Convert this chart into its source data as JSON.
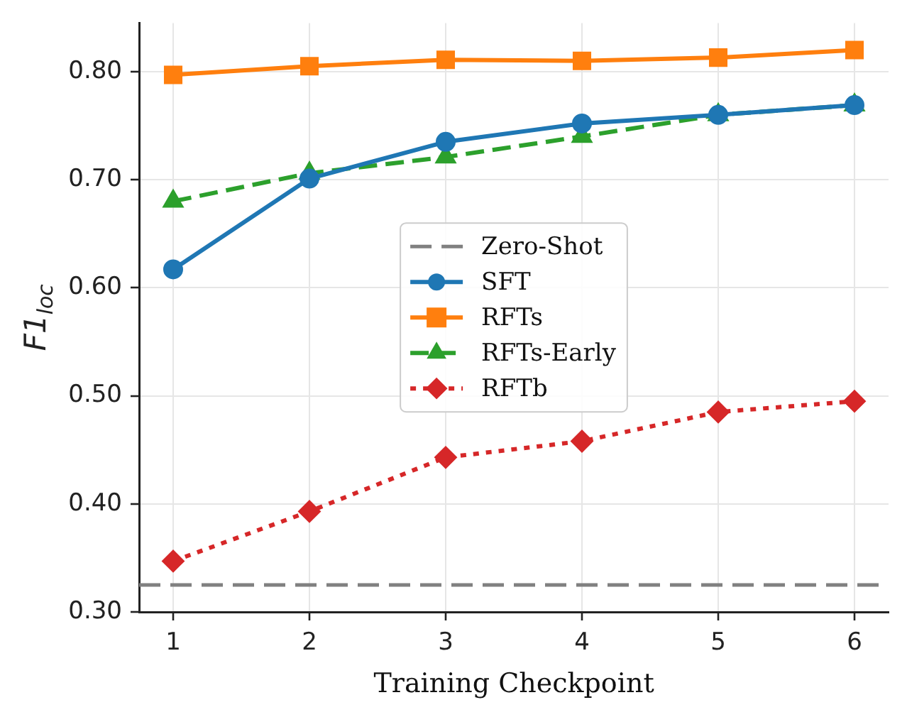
{
  "chart_data": {
    "type": "line",
    "xlabel": "Training Checkpoint",
    "ylabel": "F1$_{loc}$",
    "x": [
      1,
      2,
      3,
      4,
      5,
      6
    ],
    "series": [
      {
        "name": "SFT",
        "color": "#1f77b4",
        "values": [
          0.617,
          0.701,
          0.735,
          0.752,
          0.76,
          0.769
        ],
        "marker": "circle",
        "line_style": "solid"
      },
      {
        "name": "RFTs",
        "color": "#ff7f0e",
        "values": [
          0.797,
          0.805,
          0.811,
          0.81,
          0.813,
          0.82
        ],
        "marker": "square",
        "line_style": "solid"
      },
      {
        "name": "RFTs-Early",
        "color": "#2ca02c",
        "values": [
          0.68,
          0.706,
          0.721,
          0.74,
          0.76,
          0.769
        ],
        "marker": "triangle",
        "line_style": "dashed"
      },
      {
        "name": "RFTb",
        "color": "#d62728",
        "values": [
          0.347,
          0.393,
          0.443,
          0.458,
          0.485,
          0.495
        ],
        "marker": "diamond",
        "line_style": "dotted"
      }
    ],
    "ref_lines": [
      {
        "axis": "y",
        "value": 0.325,
        "label": "Zero-Shot",
        "color": "#808080",
        "line_style": "dashed"
      }
    ],
    "xlim": [
      0.75,
      6.25
    ],
    "xticks": [
      1,
      2,
      3,
      4,
      5,
      6
    ],
    "ylim": [
      0.3,
      0.845
    ],
    "yticks": [
      {
        "value": 0.3,
        "label": "0.30"
      },
      {
        "value": 0.4,
        "label": "0.40"
      },
      {
        "value": 0.5,
        "label": "0.50"
      },
      {
        "value": 0.6,
        "label": "0.60"
      },
      {
        "value": 0.7,
        "label": "0.70"
      },
      {
        "value": 0.8,
        "label": "0.80"
      }
    ],
    "grid": true,
    "legend": "center"
  }
}
